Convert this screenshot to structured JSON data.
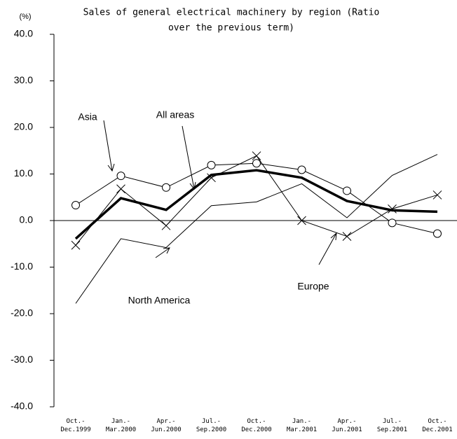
{
  "chart_data": {
    "type": "line",
    "title_lines": [
      "Sales of general electrical machinery by region (Ratio",
      "over the previous term)"
    ],
    "y_unit": "(%)",
    "categories": [
      "Oct.-\nDec.1999",
      "Jan.-\nMar.2000",
      "Apr.-\nJun.2000",
      "Jul.-\nSep.2000",
      "Oct.-\nDec.2000",
      "Jan.-\nMar.2001",
      "Apr.-\nJun.2001",
      "Jul.-\nSep.2001",
      "Oct.-\nDec.2001"
    ],
    "series": [
      {
        "name": "Asia",
        "color": "#000000",
        "marker": "circle",
        "width": 1,
        "values": [
          3.3,
          9.6,
          7.1,
          11.9,
          12.3,
          10.9,
          6.4,
          -0.5,
          -2.8
        ]
      },
      {
        "name": "All areas",
        "color": "#000000",
        "marker": "none",
        "width": 3.5,
        "values": [
          -3.9,
          4.8,
          2.3,
          9.8,
          10.8,
          9.2,
          4.2,
          2.2,
          1.9
        ]
      },
      {
        "name": "Europe",
        "color": "#000000",
        "marker": "cross",
        "width": 1,
        "values": [
          -5.3,
          6.8,
          -1.1,
          9.2,
          13.9,
          0.0,
          -3.4,
          2.5,
          5.5
        ]
      },
      {
        "name": "North America",
        "color": "#000000",
        "marker": "none",
        "width": 1,
        "values": [
          -17.8,
          -3.9,
          -5.8,
          3.2,
          4.0,
          7.9,
          0.6,
          9.7,
          14.2
        ]
      }
    ],
    "ylim": [
      -40,
      40
    ],
    "yticks": [
      {
        "value": -40,
        "label": "-40.0"
      },
      {
        "value": -30,
        "label": "-30.0"
      },
      {
        "value": -20,
        "label": "-20.0"
      },
      {
        "value": -10,
        "label": "-10.0"
      },
      {
        "value": 0,
        "label": "0.0"
      },
      {
        "value": 10,
        "label": "10.0"
      },
      {
        "value": 20,
        "label": "20.0"
      },
      {
        "value": 30,
        "label": "30.0"
      },
      {
        "value": 40,
        "label": "40.0"
      }
    ],
    "negative_tick_color": "#e00000",
    "grid": false
  }
}
